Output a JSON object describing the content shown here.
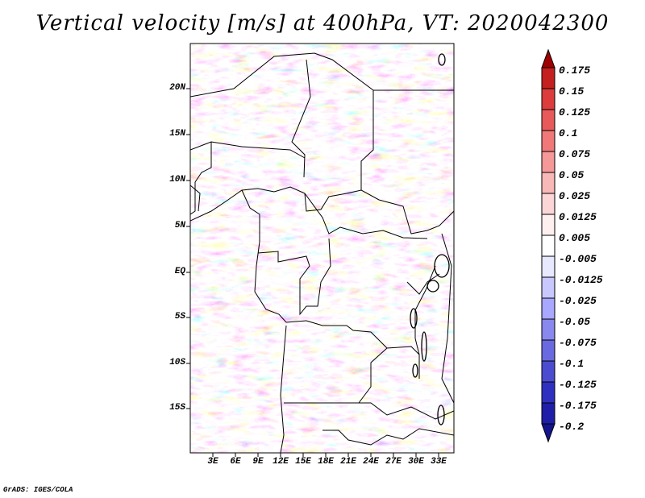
{
  "title": "Vertical velocity [m/s] at 400hPa, VT: 2020042300",
  "credit": "GrADS: IGES/COLA",
  "lat_labels": [
    "20N",
    "15N",
    "10N",
    "5N",
    "EQ",
    "5S",
    "10S",
    "15S"
  ],
  "lon_labels": [
    "3E",
    "6E",
    "9E",
    "12E",
    "15E",
    "18E",
    "21E",
    "24E",
    "27E",
    "30E",
    "33E"
  ],
  "colorbar": {
    "labels": [
      "0.175",
      "0.15",
      "0.125",
      "0.1",
      "0.075",
      "0.05",
      "0.025",
      "0.0125",
      "0.005",
      "-0.005",
      "-0.0125",
      "-0.025",
      "-0.05",
      "-0.075",
      "-0.1",
      "-0.125",
      "-0.175",
      "-0.2"
    ],
    "colors": [
      "#a00000",
      "#c42020",
      "#dc3c3c",
      "#e85a5a",
      "#f07878",
      "#f59898",
      "#f9b8b8",
      "#fcd6d6",
      "#fff0f0",
      "#ffffff",
      "#e8e8ff",
      "#c8c8ff",
      "#a8a8ff",
      "#8888ee",
      "#6a6ae0",
      "#4c4cd0",
      "#3030c0",
      "#1e1ea8",
      "#14148c"
    ]
  }
}
